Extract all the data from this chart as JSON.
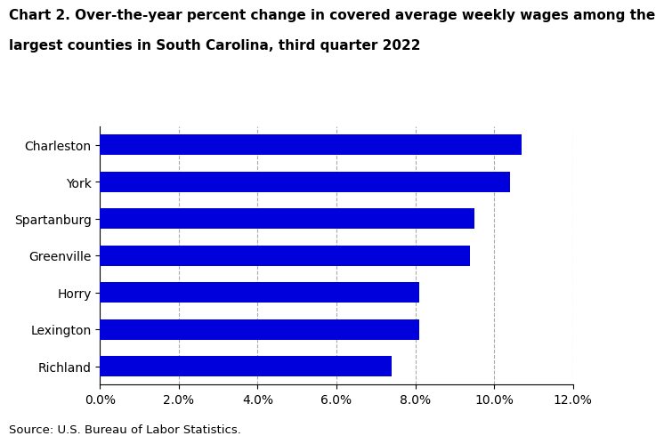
{
  "title_line1": "Chart 2. Over-the-year percent change in covered average weekly wages among the",
  "title_line2": "largest counties in South Carolina, third quarter 2022",
  "categories": [
    "Richland",
    "Lexington",
    "Horry",
    "Greenville",
    "Spartanburg",
    "York",
    "Charleston"
  ],
  "values": [
    0.074,
    0.081,
    0.081,
    0.094,
    0.095,
    0.104,
    0.107
  ],
  "bar_color": "#0000dd",
  "xlim": [
    0,
    0.12
  ],
  "xticks": [
    0.0,
    0.02,
    0.04,
    0.06,
    0.08,
    0.1,
    0.12
  ],
  "xtick_labels": [
    "0.0%",
    "2.0%",
    "4.0%",
    "6.0%",
    "8.0%",
    "10.0%",
    "12.0%"
  ],
  "source": "Source: U.S. Bureau of Labor Statistics.",
  "title_fontsize": 11,
  "tick_fontsize": 10,
  "source_fontsize": 9.5,
  "bar_height": 0.55,
  "grid_color": "#aaaaaa",
  "background_color": "#ffffff"
}
